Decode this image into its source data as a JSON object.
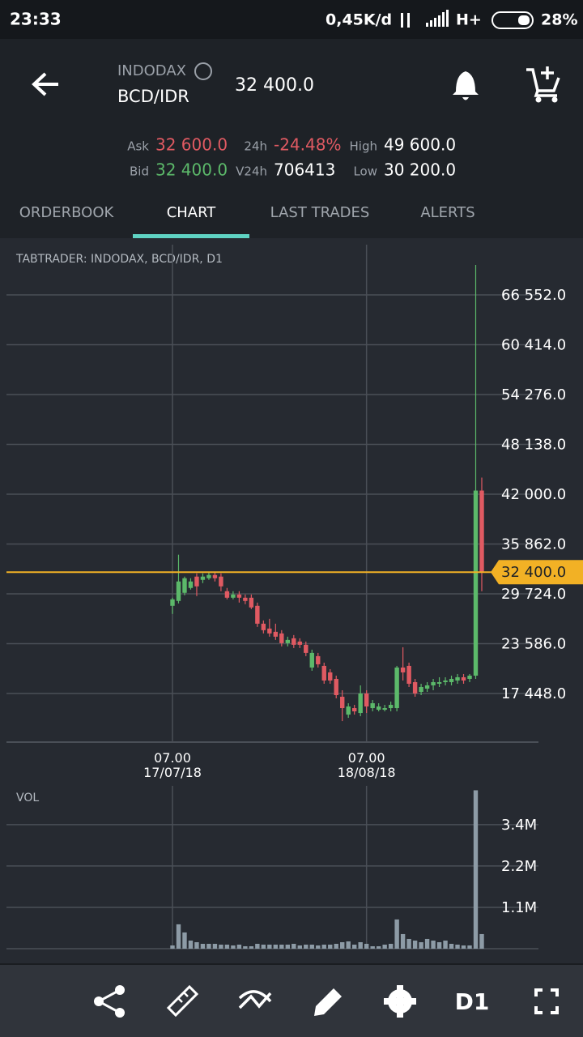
{
  "status_bar": {
    "time": "23:33",
    "speed": "0,45K/d",
    "network": "H+",
    "battery": "28%"
  },
  "header": {
    "exchange": "INDODAX",
    "pair": "BCD/IDR",
    "last_price": "32 400.0"
  },
  "stats": [
    {
      "label": "Ask",
      "value": "32 600.0",
      "color": "#e05a62"
    },
    {
      "label": "24h",
      "value": "-24.48%",
      "color": "#e05a62"
    },
    {
      "label": "High",
      "value": "49 600.0",
      "color": "#ffffff"
    },
    {
      "label": "Bid",
      "value": "32 400.0",
      "color": "#5cb96a"
    },
    {
      "label": "V24h",
      "value": "706413",
      "color": "#ffffff"
    },
    {
      "label": "Low",
      "value": "30 200.0",
      "color": "#ffffff"
    }
  ],
  "tabs": [
    "ORDERBOOK",
    "CHART",
    "LAST TRADES",
    "ALERTS"
  ],
  "active_tab": 1,
  "chart_data": [
    {
      "type": "candlestick",
      "title": "TABTRADER: INDODAX, BCD/IDR, D1",
      "categories": [
        "07.00\n17/07/18",
        null,
        null,
        null,
        null,
        null,
        null,
        null,
        null,
        null,
        null,
        null,
        null,
        null,
        null,
        null,
        null,
        null,
        null,
        null,
        null,
        null,
        null,
        null,
        null,
        null,
        null,
        null,
        null,
        null,
        null,
        null,
        "07.00\n18/08/18",
        null,
        null,
        null,
        null,
        null,
        null,
        null,
        null,
        null,
        null,
        null,
        null,
        null,
        null,
        null,
        null,
        null,
        null,
        null
      ],
      "open": [
        28248,
        28848,
        29848,
        30448,
        31848,
        31448,
        31648,
        32048,
        31848,
        30048,
        29248,
        29648,
        29248,
        29248,
        28248,
        26048,
        25448,
        25048,
        24848,
        23648,
        24248,
        23848,
        23448,
        20648,
        22048,
        20848,
        20048,
        19248,
        17048,
        14848,
        15648,
        15048,
        17448,
        15648,
        15448,
        15448,
        15648,
        15648,
        20648,
        20848,
        18848,
        17648,
        18048,
        18448,
        18648,
        18848,
        18848,
        19048,
        19448,
        19248,
        19648,
        42448
      ],
      "high": [
        29248,
        34548,
        31848,
        31648,
        32248,
        32248,
        32448,
        32448,
        32248,
        30448,
        30048,
        30048,
        29648,
        29648,
        28648,
        26448,
        26648,
        26048,
        25248,
        24448,
        24648,
        24248,
        23848,
        22848,
        22448,
        21248,
        20448,
        19648,
        17848,
        16248,
        16048,
        18448,
        17848,
        16648,
        16248,
        16048,
        16448,
        20848,
        23148,
        21248,
        19248,
        18648,
        18848,
        19248,
        19448,
        19448,
        19648,
        19848,
        19848,
        19848,
        70248,
        44048
      ],
      "low": [
        27248,
        28548,
        29548,
        30248,
        29448,
        31048,
        31448,
        31248,
        30048,
        29048,
        29048,
        28648,
        28448,
        27848,
        25648,
        24848,
        24448,
        24048,
        23248,
        23248,
        23048,
        23048,
        22048,
        20248,
        20648,
        18648,
        18648,
        16848,
        14048,
        14448,
        14848,
        14648,
        15048,
        15248,
        15248,
        15248,
        15248,
        15248,
        19048,
        18248,
        17048,
        17248,
        17648,
        17848,
        18248,
        18448,
        18448,
        18648,
        18648,
        18848,
        19248,
        30048
      ],
      "close": [
        29048,
        31248,
        31648,
        31248,
        30648,
        31848,
        32048,
        31648,
        30648,
        29248,
        29648,
        29248,
        28848,
        28048,
        26048,
        25248,
        24848,
        24448,
        23648,
        24048,
        23448,
        23448,
        22448,
        22448,
        21048,
        19048,
        19048,
        17248,
        15648,
        15848,
        15248,
        17448,
        15848,
        16248,
        15848,
        15648,
        16048,
        20648,
        20048,
        18648,
        17448,
        18248,
        18448,
        18848,
        18848,
        19048,
        19248,
        19448,
        19048,
        19648,
        42448,
        32400
      ],
      "up_color": "#5cb96a",
      "down_color": "#e05a62",
      "ylim": [
        11460,
        73340
      ],
      "yticks": [
        {
          "value": 17448,
          "label": "17 448.0"
        },
        {
          "value": 23586,
          "label": "23 586.0"
        },
        {
          "value": 29724,
          "label": "29 724.0"
        },
        {
          "value": 35862,
          "label": "35 862.0"
        },
        {
          "value": 42000,
          "label": "42 000.0"
        },
        {
          "value": 48138,
          "label": "48 138.0"
        },
        {
          "value": 54276,
          "label": "54 276.0"
        },
        {
          "value": 60414,
          "label": "60 414.0"
        },
        {
          "value": 66552,
          "label": "66 552.0"
        }
      ],
      "current_price": {
        "value": 32400,
        "label": "32 400.0"
      },
      "current_color": "#f2b125",
      "grid": true
    },
    {
      "type": "bar",
      "title": "VOL",
      "values": [
        88000,
        660000,
        440000,
        220000,
        176000,
        132000,
        132000,
        132000,
        110000,
        110000,
        88000,
        110000,
        66000,
        66000,
        132000,
        110000,
        110000,
        110000,
        110000,
        110000,
        132000,
        88000,
        110000,
        110000,
        88000,
        110000,
        110000,
        132000,
        176000,
        198000,
        110000,
        176000,
        132000,
        66000,
        66000,
        110000,
        132000,
        792000,
        396000,
        264000,
        220000,
        176000,
        264000,
        220000,
        176000,
        220000,
        132000,
        110000,
        88000,
        88000,
        4290000,
        396000
      ],
      "color": "#8d9ba6",
      "ylim": [
        0,
        4410000
      ],
      "yticks": [
        {
          "value": 1120000,
          "label": "1.1M"
        },
        {
          "value": 2240000,
          "label": "2.2M"
        },
        {
          "value": 3360000,
          "label": "3.4M"
        }
      ],
      "grid": true
    }
  ],
  "toolbar": {
    "timeframe": "D1"
  }
}
